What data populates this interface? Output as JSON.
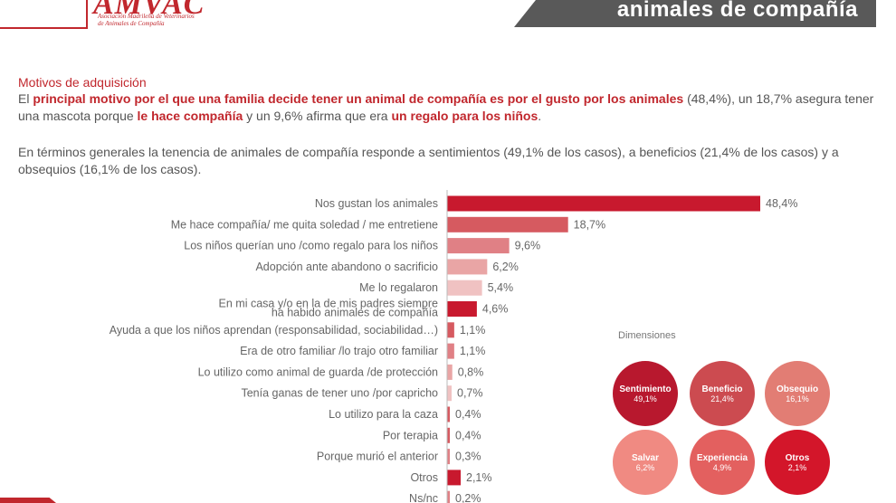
{
  "header": {
    "logo_letters": "AMVAC",
    "logo_line1": "Asociación Madrileña de Veterinarios",
    "logo_line2": "de Animales de Compañía",
    "title": "animales de compañía"
  },
  "section_title": "Motivos de adquisición",
  "para1": {
    "b1": "principal motivo por el que una familia decide tener un animal de compañía es por el gusto por los animales",
    "t1": "El ",
    "t2": " (48,4%), un 18,7% asegura tener una mascota porque ",
    "b2": "le hace compañía",
    "t3": " y un 9,6% afirma que era ",
    "b3": "un regalo para los niños",
    "t4": "."
  },
  "para2": "En términos generales la tenencia de animales de compañía responde a sentimientos (49,1% de los casos), a beneficios (21,4% de los casos) y a obsequios (16,1% de los casos).",
  "chart_data": {
    "type": "bar",
    "orientation": "horizontal",
    "categories": [
      "Nos gustan los animales",
      "Me hace compañía/ me quita soledad / me entretiene",
      "Los niños querían uno /como regalo para los niños",
      "Adopción ante abandono o sacrificio",
      "Me lo regalaron",
      "En mi casa y/o en la de mis padres siempre ha habido animales de compañía",
      "Ayuda a que los niños aprendan (responsabilidad, sociabilidad…)",
      "Era de otro familiar /lo trajo otro familiar",
      "Lo utilizo como animal de guarda /de protección",
      "Tenía ganas de tener uno /por capricho",
      "Lo utilizo para la caza",
      "Por terapia",
      "Porque murió el anterior",
      "Otros",
      "Ns/nc"
    ],
    "values": [
      48.4,
      18.7,
      9.6,
      6.2,
      5.4,
      4.6,
      1.1,
      1.1,
      0.8,
      0.7,
      0.4,
      0.4,
      0.3,
      2.1,
      0.2
    ],
    "value_labels": [
      "48,4%",
      "18,7%",
      "9,6%",
      "6,2%",
      "5,4%",
      "4,6%",
      "1,1%",
      "1,1%",
      "0,8%",
      "0,7%",
      "0,4%",
      "0,4%",
      "0,3%",
      "2,1%",
      "0,2%"
    ],
    "colors": [
      "#c8192e",
      "#d65a60",
      "#e08085",
      "#e9a5a5",
      "#f0c2c2",
      "#c8192e",
      "#d65a60",
      "#e08085",
      "#e9a5a5",
      "#f0c2c2",
      "#d65a60",
      "#d65a60",
      "#e08085",
      "#c8192e",
      "#e08085"
    ],
    "xlim": [
      0,
      50
    ]
  },
  "dimensions": {
    "title": "Dimensiones",
    "items": [
      {
        "name": "Sentimiento",
        "value": "49,1%",
        "color": "#b8182e"
      },
      {
        "name": "Beneficio",
        "value": "21,4%",
        "color": "#cc4b50"
      },
      {
        "name": "Obsequio",
        "value": "16,1%",
        "color": "#e27d74"
      },
      {
        "name": "Salvar",
        "value": "6,2%",
        "color": "#f08a82"
      },
      {
        "name": "Experiencia",
        "value": "4,9%",
        "color": "#e3605f"
      },
      {
        "name": "Otros",
        "value": "2,1%",
        "color": "#d3162a"
      }
    ]
  }
}
